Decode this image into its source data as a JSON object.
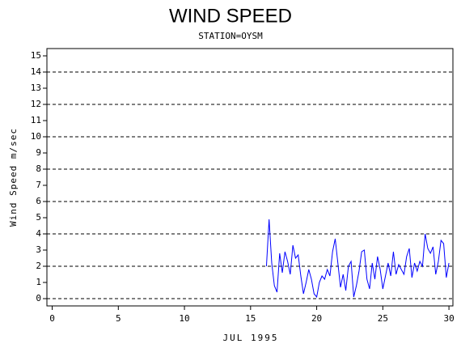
{
  "chart_data": {
    "type": "line",
    "title": "WIND SPEED",
    "subtitle": "STATION=OYSM",
    "xlabel": "JUL 1995",
    "ylabel": "Wind Speed m/sec",
    "color": "#0000ff",
    "x": [
      16.2,
      16.4,
      16.6,
      16.8,
      17.0,
      17.2,
      17.4,
      17.6,
      17.8,
      18.0,
      18.2,
      18.4,
      18.6,
      18.8,
      19.0,
      19.2,
      19.4,
      19.6,
      19.8,
      20.0,
      20.2,
      20.4,
      20.6,
      20.8,
      21.0,
      21.2,
      21.4,
      21.6,
      21.8,
      22.0,
      22.2,
      22.4,
      22.6,
      22.8,
      23.0,
      23.2,
      23.4,
      23.6,
      23.8,
      24.0,
      24.2,
      24.4,
      24.6,
      24.8,
      25.0,
      25.2,
      25.4,
      25.6,
      25.8,
      26.0,
      26.2,
      26.4,
      26.6,
      26.8,
      27.0,
      27.2,
      27.4,
      27.6,
      27.8,
      28.0,
      28.2,
      28.4,
      28.6,
      28.8,
      29.0,
      29.2,
      29.4,
      29.6,
      29.8,
      30.0
    ],
    "values": [
      2.0,
      4.9,
      2.2,
      0.8,
      0.4,
      2.8,
      1.6,
      2.9,
      2.3,
      1.5,
      3.3,
      2.5,
      2.7,
      1.4,
      0.3,
      1.0,
      1.8,
      1.2,
      0.3,
      0.1,
      1.0,
      1.4,
      1.2,
      1.8,
      1.4,
      2.9,
      3.7,
      2.2,
      0.7,
      1.5,
      0.5,
      2.0,
      2.3,
      0.1,
      0.8,
      1.7,
      2.9,
      3.0,
      1.2,
      0.6,
      2.2,
      1.2,
      2.6,
      1.8,
      0.6,
      1.4,
      2.2,
      1.4,
      2.9,
      1.5,
      2.1,
      1.8,
      1.5,
      2.6,
      3.1,
      1.3,
      2.2,
      1.7,
      2.3,
      2.0,
      4.0,
      3.1,
      2.8,
      3.2,
      1.5,
      2.3,
      3.6,
      3.4,
      1.3,
      2.2
    ],
    "xlim": [
      -0.4,
      30.3
    ],
    "xticks": [
      0,
      5,
      10,
      15,
      20,
      25,
      30
    ],
    "ylim": [
      -0.45,
      15.45
    ],
    "yticks": [
      0,
      1,
      2,
      3,
      4,
      5,
      6,
      7,
      8,
      9,
      10,
      11,
      12,
      13,
      14,
      15
    ],
    "ygrid": [
      0,
      2,
      4,
      6,
      8,
      10,
      12,
      14
    ]
  }
}
